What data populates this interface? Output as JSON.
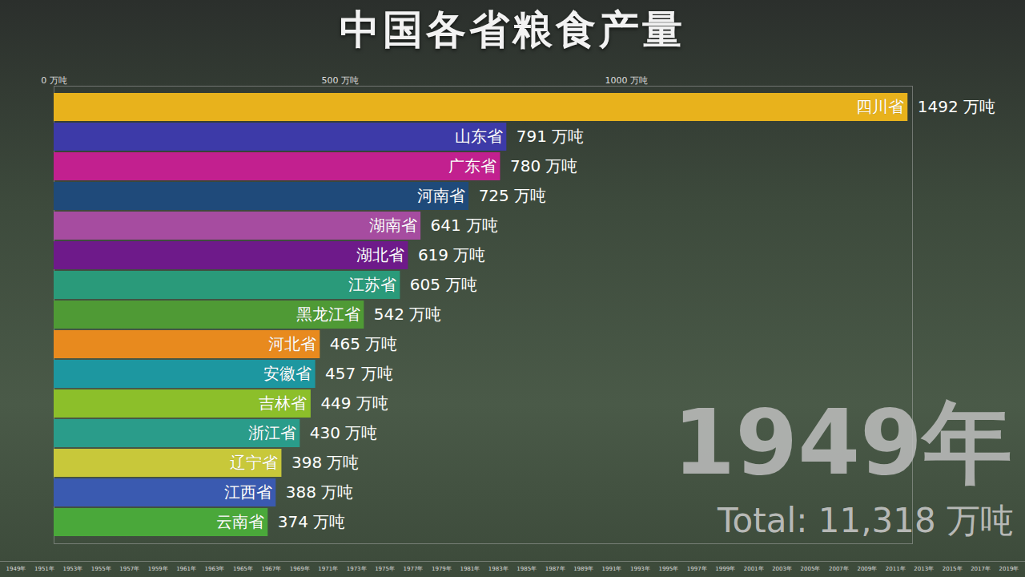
{
  "chart_data": {
    "type": "bar",
    "orientation": "horizontal",
    "title": "中国各省粮食产量",
    "categories": [
      "四川省",
      "山东省",
      "广东省",
      "河南省",
      "湖南省",
      "湖北省",
      "江苏省",
      "黑龙江省",
      "河北省",
      "安徽省",
      "吉林省",
      "浙江省",
      "辽宁省",
      "江西省",
      "云南省"
    ],
    "values": [
      1492,
      791,
      780,
      725,
      641,
      619,
      605,
      542,
      465,
      457,
      449,
      430,
      398,
      388,
      374
    ],
    "value_labels": [
      "1492 万吨",
      "791 万吨",
      "780 万吨",
      "725 万吨",
      "641 万吨",
      "619 万吨",
      "605 万吨",
      "542 万吨",
      "465 万吨",
      "457 万吨",
      "449 万吨",
      "430 万吨",
      "398 万吨",
      "388 万吨",
      "374 万吨"
    ],
    "colors": [
      "#e8b21c",
      "#3d3aa8",
      "#c2208f",
      "#1f4a7a",
      "#a64ca0",
      "#6e1a8a",
      "#2a9a7a",
      "#4f9a35",
      "#e88a1e",
      "#1d97a0",
      "#8cbf2a",
      "#2a9c8a",
      "#c8c83a",
      "#3a5ab0",
      "#4aa83a"
    ],
    "xlim": [
      0,
      1500
    ],
    "xticks": [
      {
        "value": 0,
        "label": "0 万吨"
      },
      {
        "value": 500,
        "label": "500 万吨"
      },
      {
        "value": 1000,
        "label": "1000 万吨"
      }
    ],
    "grid": false,
    "data_labels": true,
    "tick_labels": "x",
    "year": "1949年",
    "total_label": "Total:",
    "total": "11,318 万吨",
    "timeline": [
      "1949年",
      "1951年",
      "1953年",
      "1955年",
      "1957年",
      "1959年",
      "1961年",
      "1963年",
      "1965年",
      "1967年",
      "1969年",
      "1971年",
      "1973年",
      "1975年",
      "1977年",
      "1979年",
      "1981年",
      "1983年",
      "1985年",
      "1987年",
      "1989年",
      "1991年",
      "1993年",
      "1995年",
      "1997年",
      "1999年",
      "2001年",
      "2003年",
      "2005年",
      "2007年",
      "2009年",
      "2011年",
      "2013年",
      "2015年",
      "2017年",
      "2019年"
    ]
  }
}
